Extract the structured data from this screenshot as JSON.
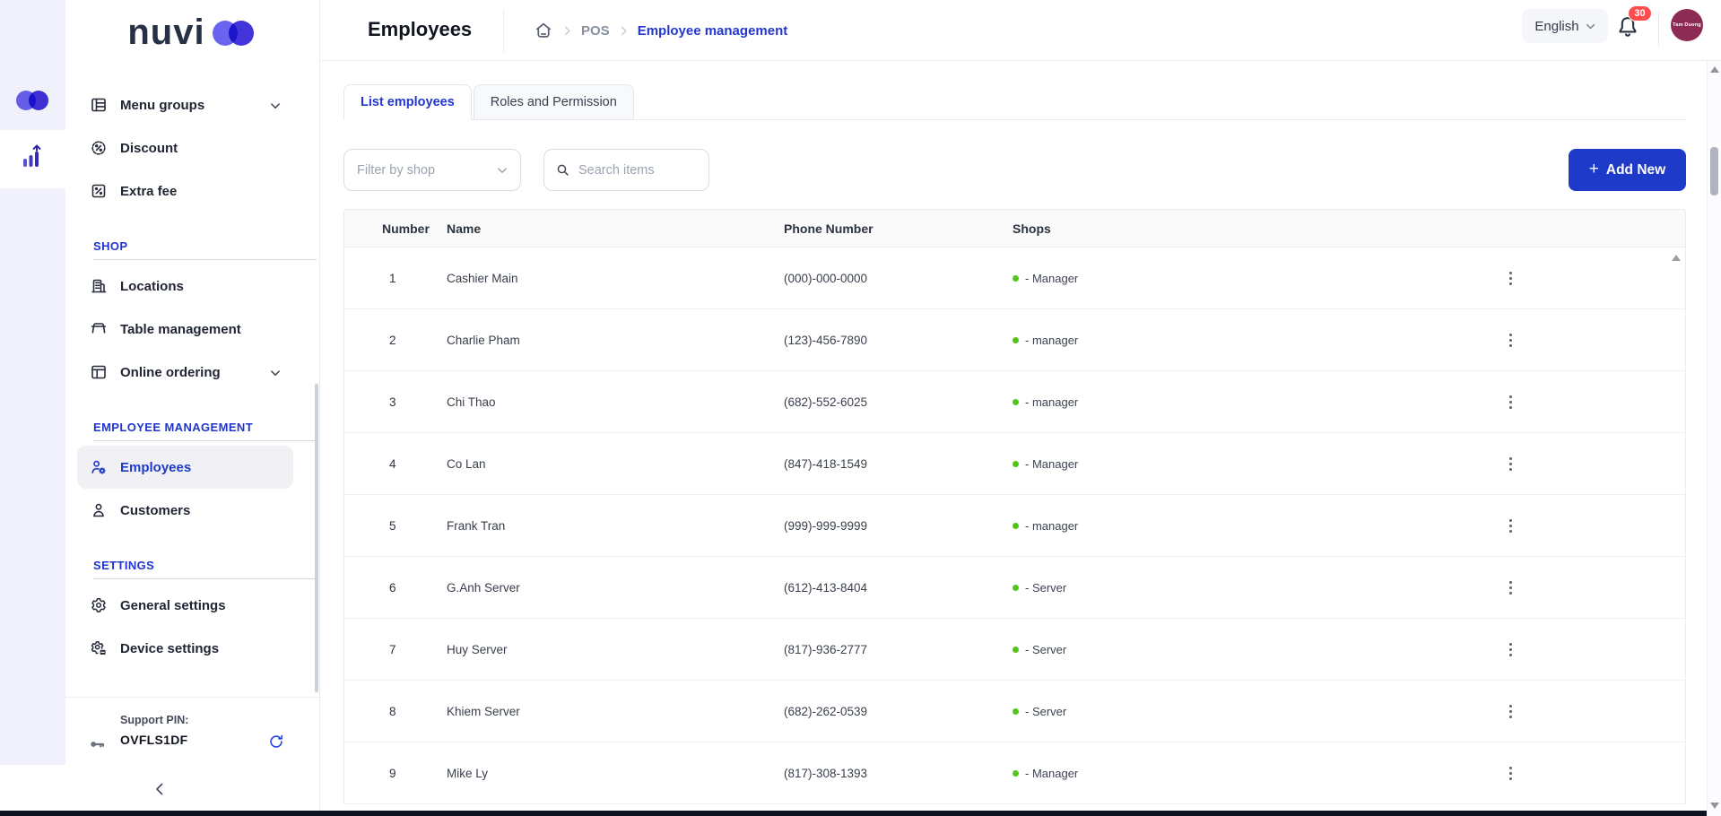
{
  "brand": {
    "name": "nuvi"
  },
  "rail": {
    "logo_icon": "infinity-logo-icon",
    "analytics_icon": "bar-chart-icon"
  },
  "sidebar": {
    "sections": [
      {
        "header": "",
        "items": [
          {
            "label": "Menu groups",
            "icon": "menu-grid-icon",
            "chevron": true
          },
          {
            "label": "Discount",
            "icon": "discount-badge-icon"
          },
          {
            "label": "Extra fee",
            "icon": "extra-fee-icon"
          }
        ]
      },
      {
        "header": "SHOP",
        "items": [
          {
            "label": "Locations",
            "icon": "building-icon"
          },
          {
            "label": "Table management",
            "icon": "table-icon"
          },
          {
            "label": "Online ordering",
            "icon": "browser-window-icon",
            "chevron": true
          }
        ]
      },
      {
        "header": "EMPLOYEE MANAGEMENT",
        "items": [
          {
            "label": "Employees",
            "icon": "user-gear-icon",
            "active": true
          },
          {
            "label": "Customers",
            "icon": "user-icon"
          }
        ]
      },
      {
        "header": "SETTINGS",
        "items": [
          {
            "label": "General settings",
            "icon": "gear-icon"
          },
          {
            "label": "Device settings",
            "icon": "device-gear-icon"
          }
        ]
      }
    ],
    "support": {
      "label": "Support PIN:",
      "value": "OVFLS1DF"
    }
  },
  "header": {
    "title": "Employees",
    "breadcrumb": {
      "pos": "POS",
      "current": "Employee management"
    },
    "language": "English",
    "notification_count": "30",
    "avatar_label": "Tam Duong"
  },
  "tabs": [
    {
      "label": "List employees",
      "active": true
    },
    {
      "label": "Roles and Permission",
      "active": false
    }
  ],
  "toolbar": {
    "filter_placeholder": "Filter by shop",
    "search_placeholder": "Search items",
    "add_new_label": "Add New",
    "add_new_plus": "+"
  },
  "table": {
    "columns": [
      "Number",
      "Name",
      "Phone Number",
      "Shops"
    ],
    "rows": [
      {
        "number": "1",
        "name": "Cashier Main",
        "phone": "(000)-000-0000",
        "shop": "- Manager"
      },
      {
        "number": "2",
        "name": "Charlie Pham",
        "phone": "(123)-456-7890",
        "shop": "- manager"
      },
      {
        "number": "3",
        "name": "Chi Thao",
        "phone": "(682)-552-6025",
        "shop": "- manager"
      },
      {
        "number": "4",
        "name": "Co Lan",
        "phone": "(847)-418-1549",
        "shop": "- Manager"
      },
      {
        "number": "5",
        "name": "Frank Tran",
        "phone": "(999)-999-9999",
        "shop": "- manager"
      },
      {
        "number": "6",
        "name": "G.Anh Server",
        "phone": "(612)-413-8404",
        "shop": "- Server"
      },
      {
        "number": "7",
        "name": "Huy Server",
        "phone": "(817)-936-2777",
        "shop": "- Server"
      },
      {
        "number": "8",
        "name": "Khiem Server",
        "phone": "(682)-262-0539",
        "shop": "- Server"
      },
      {
        "number": "9",
        "name": "Mike Ly",
        "phone": "(817)-308-1393",
        "shop": "- Manager"
      }
    ]
  },
  "colors": {
    "accent_blue": "#1d3ac8",
    "status_green": "#52c41a",
    "badge_red": "#ff4d4f",
    "avatar_maroon": "#8e2b55",
    "rail_lavender": "#f0f1fb",
    "logo_purple": "#6a63ef",
    "logo_indigo": "#3b2ed6"
  }
}
